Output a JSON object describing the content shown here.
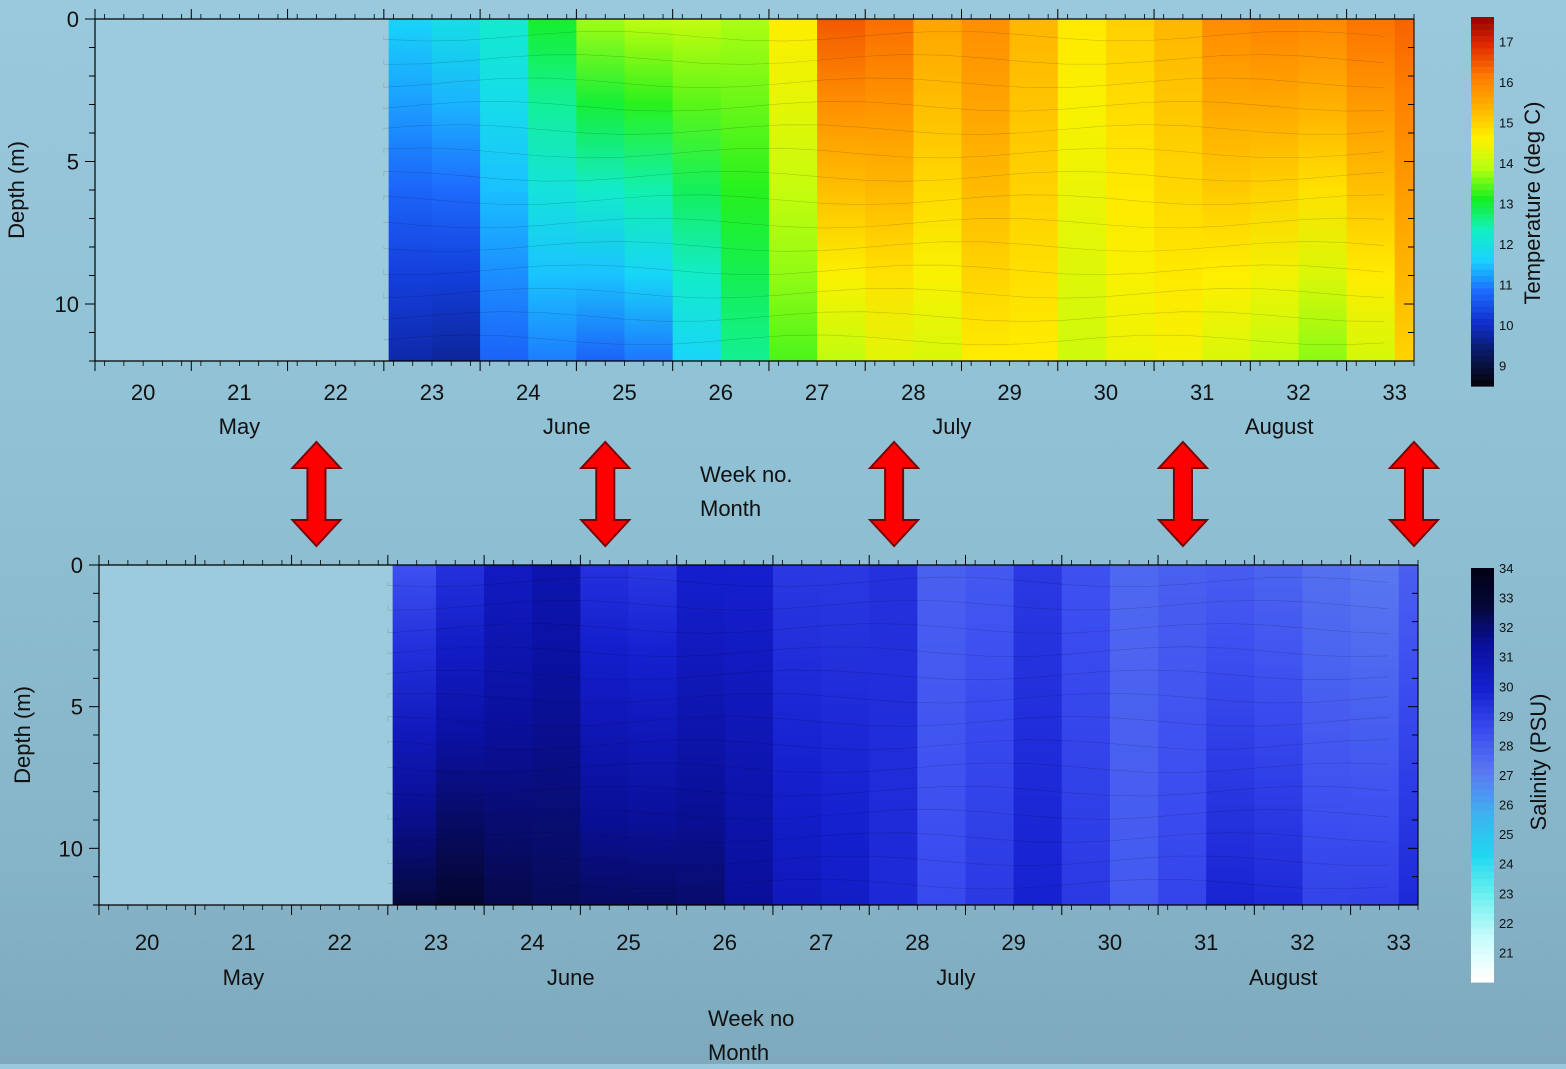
{
  "chart_data": [
    {
      "type": "heatmap",
      "title": "",
      "ylabel": "Depth (m)",
      "xlabel": "Week no.",
      "xlabel2": "Month",
      "colorbar_label": "Temperature (deg C)",
      "colorbar_ticks": [
        "9",
        "10",
        "11",
        "12",
        "13",
        "14",
        "15",
        "16",
        "17"
      ],
      "colorbar_range": [
        8.5,
        17.6
      ],
      "xlim": [
        19.5,
        33.2
      ],
      "ylim": [
        12,
        0
      ],
      "y_ticks": [
        "0",
        "5",
        "10"
      ],
      "x_ticks": [
        "20",
        "21",
        "22",
        "23",
        "24",
        "25",
        "26",
        "27",
        "28",
        "29",
        "30",
        "31",
        "32",
        "33"
      ],
      "months": [
        "May",
        "June",
        "July",
        "August"
      ],
      "data_start_week": 22.5,
      "columns": [
        {
          "week": 22.55,
          "surface": 11.0,
          "bottom": 10.5
        },
        {
          "week": 23.0,
          "surface": 12.2,
          "bottom": 9.0
        },
        {
          "week": 23.5,
          "surface": 11.5,
          "bottom": 10.3
        },
        {
          "week": 24.0,
          "surface": 12.8,
          "bottom": 11.0
        },
        {
          "week": 24.5,
          "surface": 13.2,
          "bottom": 10.8
        },
        {
          "week": 25.0,
          "surface": 14.2,
          "bottom": 10.5
        },
        {
          "week": 25.5,
          "surface": 13.6,
          "bottom": 11.2
        },
        {
          "week": 26.0,
          "surface": 14.3,
          "bottom": 12.0
        },
        {
          "week": 26.5,
          "surface": 13.2,
          "bottom": 13.0
        },
        {
          "week": 27.0,
          "surface": 16.0,
          "bottom": 13.6
        },
        {
          "week": 27.5,
          "surface": 16.8,
          "bottom": 14.2
        },
        {
          "week": 28.0,
          "surface": 15.6,
          "bottom": 14.3
        },
        {
          "week": 28.5,
          "surface": 15.4,
          "bottom": 14.0
        },
        {
          "week": 29.0,
          "surface": 16.2,
          "bottom": 15.2
        },
        {
          "week": 29.5,
          "surface": 14.3,
          "bottom": 14.0
        },
        {
          "week": 30.0,
          "surface": 15.0,
          "bottom": 14.1
        },
        {
          "week": 30.5,
          "surface": 14.9,
          "bottom": 14.6
        },
        {
          "week": 31.0,
          "surface": 15.6,
          "bottom": 14.3
        },
        {
          "week": 31.5,
          "surface": 16.1,
          "bottom": 14.0
        },
        {
          "week": 32.0,
          "surface": 15.8,
          "bottom": 13.8
        },
        {
          "week": 32.5,
          "surface": 16.0,
          "bottom": 13.4
        },
        {
          "week": 33.0,
          "surface": 16.3,
          "bottom": 14.8
        },
        {
          "week": 33.2,
          "surface": 16.3,
          "bottom": 15.0
        }
      ]
    },
    {
      "type": "heatmap",
      "title": "",
      "ylabel": "Depth (m)",
      "xlabel": "Week no",
      "xlabel2": "Month",
      "colorbar_label": "Salinity (PSU)",
      "colorbar_ticks": [
        "21",
        "22",
        "23",
        "24",
        "25",
        "26",
        "27",
        "28",
        "29",
        "30",
        "31",
        "32",
        "33",
        "34"
      ],
      "colorbar_range": [
        20.0,
        34.0
      ],
      "xlim": [
        19.5,
        33.2
      ],
      "ylim": [
        12,
        0
      ],
      "y_ticks": [
        "0",
        "5",
        "10"
      ],
      "x_ticks": [
        "20",
        "21",
        "22",
        "23",
        "24",
        "25",
        "26",
        "27",
        "28",
        "29",
        "30",
        "31",
        "32",
        "33"
      ],
      "months": [
        "May",
        "June",
        "July",
        "August"
      ],
      "data_start_week": 22.5,
      "columns": [
        {
          "week": 22.55,
          "surface": 27.0,
          "bottom": 31.5
        },
        {
          "week": 23.0,
          "surface": 29.5,
          "bottom": 33.6
        },
        {
          "week": 23.5,
          "surface": 29.0,
          "bottom": 32.2
        },
        {
          "week": 24.0,
          "surface": 31.5,
          "bottom": 32.5
        },
        {
          "week": 24.5,
          "surface": 30.0,
          "bottom": 31.8
        },
        {
          "week": 25.0,
          "surface": 28.5,
          "bottom": 32.3
        },
        {
          "week": 25.5,
          "surface": 29.5,
          "bottom": 31.8
        },
        {
          "week": 26.0,
          "surface": 30.2,
          "bottom": 32.0
        },
        {
          "week": 26.5,
          "surface": 29.5,
          "bottom": 30.6
        },
        {
          "week": 27.0,
          "surface": 28.5,
          "bottom": 30.2
        },
        {
          "week": 27.5,
          "surface": 29.5,
          "bottom": 30.0
        },
        {
          "week": 28.0,
          "surface": 29.0,
          "bottom": 29.0
        },
        {
          "week": 28.5,
          "surface": 26.5,
          "bottom": 28.0
        },
        {
          "week": 29.0,
          "surface": 29.5,
          "bottom": 30.0
        },
        {
          "week": 29.5,
          "surface": 28.5,
          "bottom": 29.5
        },
        {
          "week": 30.0,
          "surface": 28.0,
          "bottom": 28.5
        },
        {
          "week": 30.5,
          "surface": 27.0,
          "bottom": 27.5
        },
        {
          "week": 31.0,
          "surface": 28.5,
          "bottom": 29.8
        },
        {
          "week": 31.5,
          "surface": 27.2,
          "bottom": 29.6
        },
        {
          "week": 32.0,
          "surface": 28.0,
          "bottom": 29.4
        },
        {
          "week": 32.5,
          "surface": 26.5,
          "bottom": 28.0
        },
        {
          "week": 33.0,
          "surface": 27.5,
          "bottom": 29.5
        },
        {
          "week": 33.2,
          "surface": 28.0,
          "bottom": 29.5
        }
      ]
    }
  ],
  "arrow_weeks": [
    21.8,
    24.8,
    27.8,
    30.8,
    33.2
  ],
  "colors": {
    "temperature_scale": [
      "#050510",
      "#0a1a60",
      "#1030d0",
      "#1e6cff",
      "#19d2ff",
      "#12f0c0",
      "#16ef20",
      "#b8ff10",
      "#fff000",
      "#ffb000",
      "#ff7a00",
      "#e02a00",
      "#8a0000"
    ],
    "salinity_scale": [
      "#ffffff",
      "#c8fbfb",
      "#6ff0f0",
      "#1fd8f0",
      "#40b0f0",
      "#5a78f0",
      "#3a4cf0",
      "#1520d0",
      "#0a10a0",
      "#050838",
      "#000010"
    ],
    "arrow": "#ff0000",
    "arrow_outline": "#7a0000",
    "plot_blank": "#9ccbdd"
  }
}
